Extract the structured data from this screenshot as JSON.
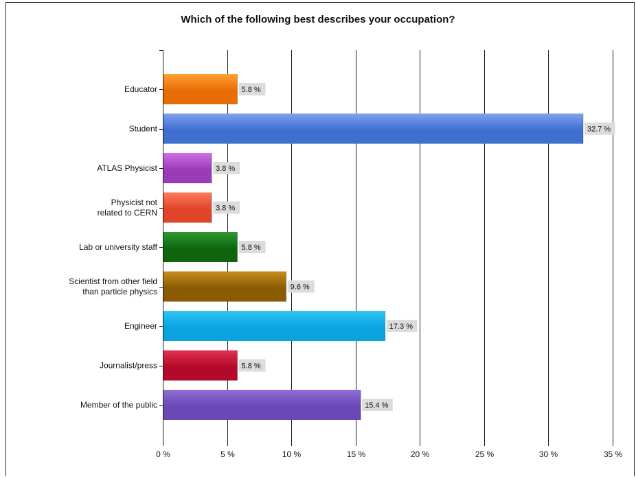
{
  "chart_data": {
    "type": "bar",
    "orientation": "horizontal",
    "title": "Which of the following best describes your occupation?",
    "categories": [
      [
        "Educator"
      ],
      [
        "Student"
      ],
      [
        "ATLAS Physicist"
      ],
      [
        "Physicist not",
        "related to CERN"
      ],
      [
        "Lab or university staff"
      ],
      [
        "Scientist from other field",
        "than particle physics"
      ],
      [
        "Engineer"
      ],
      [
        "Journalist/press"
      ],
      [
        "Member of the public"
      ]
    ],
    "values": [
      5.8,
      32.7,
      3.8,
      3.8,
      5.8,
      9.6,
      17.3,
      5.8,
      15.4
    ],
    "data_labels": [
      "5.8 %",
      "32.7 %",
      "3.8 %",
      "3.8 %",
      "5.8 %",
      "9.6 %",
      "17.3 %",
      "5.8 %",
      "15.4 %"
    ],
    "xlim": [
      0,
      35
    ],
    "xticks": [
      0,
      5,
      10,
      15,
      20,
      25,
      30,
      35
    ],
    "xtick_labels": [
      "0 %",
      "5 %",
      "10 %",
      "15 %",
      "20 %",
      "25 %",
      "30 %",
      "35 %"
    ],
    "grid": "vertical",
    "legend": "none",
    "colors": [
      [
        "#ffa035",
        "#e86d05"
      ],
      [
        "#7ea2ee",
        "#3f6fcf"
      ],
      [
        "#cf6ee6",
        "#9a3bb8"
      ],
      [
        "#ff7a5c",
        "#e0452a"
      ],
      [
        "#2f9a2f",
        "#0e650e"
      ],
      [
        "#c78d1d",
        "#8a5b03"
      ],
      [
        "#2fc6f5",
        "#0aa2df"
      ],
      [
        "#e33350",
        "#b3092b"
      ],
      [
        "#8f6ed6",
        "#6a48b5"
      ]
    ]
  }
}
